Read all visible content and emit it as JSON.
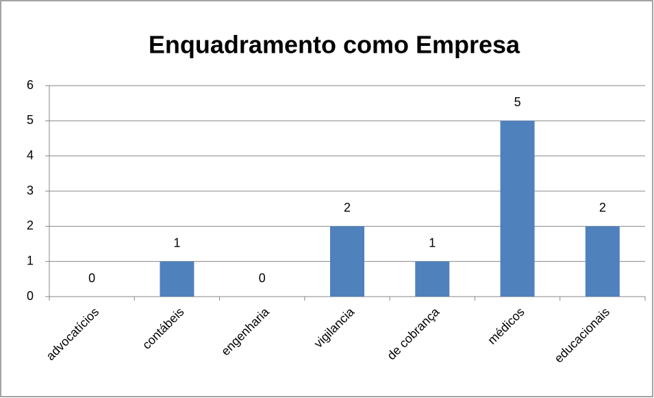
{
  "chart_data": {
    "type": "bar",
    "title": "Enquadramento como Empresa",
    "categories": [
      "advocatícios",
      "contábeis",
      "engenharia",
      "vigilancia",
      "de cobrança",
      "médicos",
      "educacionais"
    ],
    "values": [
      0,
      1,
      0,
      2,
      1,
      5,
      2
    ],
    "color": "#4f81bd",
    "ylim": [
      0,
      6
    ],
    "yticks": [
      0,
      1,
      2,
      3,
      4,
      5,
      6
    ],
    "grid": true
  }
}
